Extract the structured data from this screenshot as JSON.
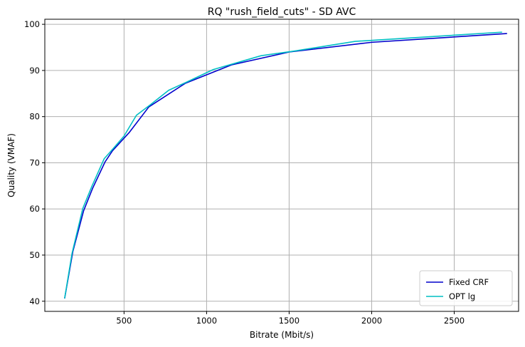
{
  "chart_data": {
    "type": "line",
    "title": "RQ \"rush_field_cuts\" - SD AVC",
    "xlabel": "Bitrate (Mbit/s)",
    "ylabel": "Quality (VMAF)",
    "xlim": [
      20,
      2890
    ],
    "ylim": [
      37.8,
      101.1
    ],
    "xticks": [
      500,
      1000,
      1500,
      2000,
      2500
    ],
    "yticks": [
      40,
      50,
      60,
      70,
      80,
      90,
      100
    ],
    "grid": true,
    "legend_position": "lower-right",
    "series": [
      {
        "name": "Fixed CRF",
        "color": "#0000cc",
        "x": [
          140,
          190,
          255,
          310,
          385,
          430,
          530,
          650,
          870,
          1150,
          1500,
          2000,
          2820
        ],
        "y": [
          40.6,
          50.8,
          59.6,
          64.5,
          70.2,
          72.6,
          76.5,
          82.1,
          87.2,
          91.2,
          94.0,
          96.1,
          98.0
        ]
      },
      {
        "name": "OPT lg",
        "color": "#00bfc4",
        "x": [
          140,
          185,
          250,
          305,
          380,
          420,
          500,
          575,
          660,
          770,
          880,
          1040,
          1330,
          1530,
          1900,
          2790
        ],
        "y": [
          40.6,
          50.4,
          60.1,
          64.9,
          70.9,
          72.5,
          75.8,
          80.3,
          82.6,
          85.7,
          87.5,
          90.2,
          93.2,
          94.2,
          96.3,
          98.3
        ]
      }
    ]
  }
}
